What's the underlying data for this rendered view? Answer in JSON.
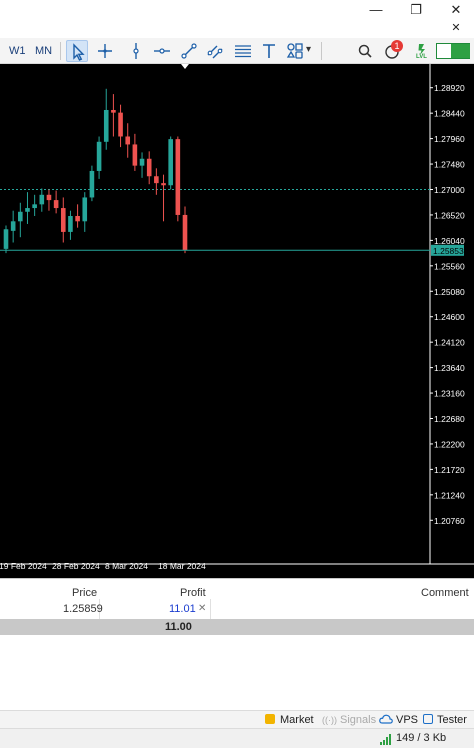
{
  "window": {
    "minimize_glyph": "—",
    "maximize_glyph": "❐",
    "close_glyph": "✕",
    "small_close_glyph": "✕"
  },
  "toolbar": {
    "timeframes": [
      "W1",
      "MN"
    ],
    "tools": [
      "cursor-icon",
      "crosshair-icon",
      "vertical-line-icon",
      "horizontal-line-icon",
      "trend-line-icon",
      "channel-icon",
      "fibonacci-icon",
      "text-icon",
      "shapes-icon"
    ],
    "shapes_caret": "▾",
    "notification_count": "1",
    "lvl_label": "LVL"
  },
  "chart": {
    "price_levels": [
      "1.28920",
      "1.28440",
      "1.27960",
      "1.27480",
      "1.27000",
      "1.26520",
      "1.26040",
      "1.25560",
      "1.25080",
      "1.24600",
      "1.24120",
      "1.23640",
      "1.23160",
      "1.22680",
      "1.22200",
      "1.21720",
      "1.21240",
      "1.20760"
    ],
    "current_price": "1.25853",
    "date_labels": [
      "19 Feb 2024",
      "28 Feb 2024",
      "8 Mar 2024",
      "18 Mar 2024"
    ],
    "colors": {
      "bull": "#26a69a",
      "bear": "#ef5350",
      "bg": "#000000",
      "text": "#ffffff"
    }
  },
  "chart_data": {
    "type": "candlestick",
    "ylim": [
      1.2052,
      1.2916
    ],
    "candles": [
      {
        "o": 1.2588,
        "h": 1.2632,
        "l": 1.258,
        "c": 1.2625
      },
      {
        "o": 1.2622,
        "h": 1.266,
        "l": 1.26,
        "c": 1.264
      },
      {
        "o": 1.264,
        "h": 1.2675,
        "l": 1.261,
        "c": 1.2658
      },
      {
        "o": 1.2658,
        "h": 1.2695,
        "l": 1.2635,
        "c": 1.2665
      },
      {
        "o": 1.2665,
        "h": 1.269,
        "l": 1.265,
        "c": 1.2672
      },
      {
        "o": 1.2672,
        "h": 1.2702,
        "l": 1.2658,
        "c": 1.269
      },
      {
        "o": 1.269,
        "h": 1.27,
        "l": 1.266,
        "c": 1.268
      },
      {
        "o": 1.268,
        "h": 1.2698,
        "l": 1.2655,
        "c": 1.2665
      },
      {
        "o": 1.2665,
        "h": 1.2685,
        "l": 1.26,
        "c": 1.262
      },
      {
        "o": 1.262,
        "h": 1.266,
        "l": 1.2605,
        "c": 1.265
      },
      {
        "o": 1.265,
        "h": 1.2672,
        "l": 1.2628,
        "c": 1.264
      },
      {
        "o": 1.264,
        "h": 1.2695,
        "l": 1.262,
        "c": 1.2685
      },
      {
        "o": 1.2685,
        "h": 1.2745,
        "l": 1.2678,
        "c": 1.2735
      },
      {
        "o": 1.2735,
        "h": 1.28,
        "l": 1.272,
        "c": 1.279
      },
      {
        "o": 1.279,
        "h": 1.289,
        "l": 1.2775,
        "c": 1.285
      },
      {
        "o": 1.285,
        "h": 1.288,
        "l": 1.28,
        "c": 1.2845
      },
      {
        "o": 1.2845,
        "h": 1.286,
        "l": 1.278,
        "c": 1.28
      },
      {
        "o": 1.28,
        "h": 1.2825,
        "l": 1.276,
        "c": 1.2785
      },
      {
        "o": 1.2785,
        "h": 1.2805,
        "l": 1.2735,
        "c": 1.2745
      },
      {
        "o": 1.2745,
        "h": 1.277,
        "l": 1.2722,
        "c": 1.2758
      },
      {
        "o": 1.2758,
        "h": 1.2772,
        "l": 1.271,
        "c": 1.2725
      },
      {
        "o": 1.2725,
        "h": 1.274,
        "l": 1.269,
        "c": 1.2712
      },
      {
        "o": 1.2712,
        "h": 1.2728,
        "l": 1.264,
        "c": 1.2708
      },
      {
        "o": 1.2708,
        "h": 1.28,
        "l": 1.27,
        "c": 1.2795
      },
      {
        "o": 1.2795,
        "h": 1.28,
        "l": 1.264,
        "c": 1.2652
      },
      {
        "o": 1.2652,
        "h": 1.2668,
        "l": 1.258,
        "c": 1.2585
      }
    ]
  },
  "terminal": {
    "columns": {
      "price": "Price",
      "profit": "Profit",
      "comment": "Comment"
    },
    "rows": [
      {
        "price": "1.25859",
        "profit": "11.01",
        "close_glyph": "✕"
      }
    ],
    "total_profit": "11.00"
  },
  "bottom_tabs": [
    {
      "icon": "market-bag-icon",
      "label": "Market"
    },
    {
      "icon": "signals-icon",
      "label": "Signals"
    },
    {
      "icon": "vps-cloud-icon",
      "label": "VPS"
    },
    {
      "icon": "tester-icon",
      "label": "Tester"
    }
  ],
  "status": {
    "traffic": "149 / 3 Kb"
  }
}
